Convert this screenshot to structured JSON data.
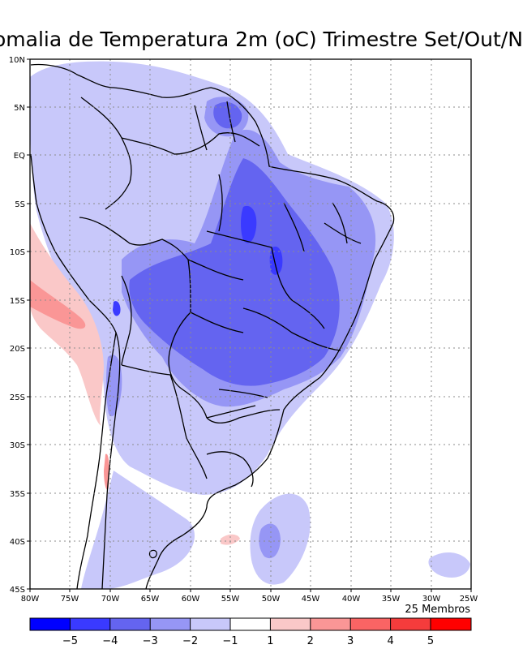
{
  "title": "omalia de Temperatura 2m (oC) Trimestre Set/Out/N",
  "members_label": "25 Membros",
  "lat_ticks": [
    "10N",
    "5N",
    "EQ",
    "5S",
    "10S",
    "15S",
    "20S",
    "25S",
    "30S",
    "35S",
    "40S",
    "45S"
  ],
  "lon_ticks": [
    "80W",
    "75W",
    "70W",
    "65W",
    "60W",
    "55W",
    "50W",
    "45W",
    "40W",
    "35W",
    "30W",
    "25W"
  ],
  "colorbar": {
    "colors": [
      "#0000ff",
      "#3a3aff",
      "#6464f0",
      "#9696f5",
      "#c8c8fa",
      "#ffffff",
      "#fac8c8",
      "#fa9696",
      "#fa6464",
      "#f53c3c",
      "#ff0000"
    ],
    "labels": [
      "-5",
      "-4",
      "-3",
      "-2",
      "-1",
      "1",
      "2",
      "3",
      "4",
      "5"
    ]
  }
}
